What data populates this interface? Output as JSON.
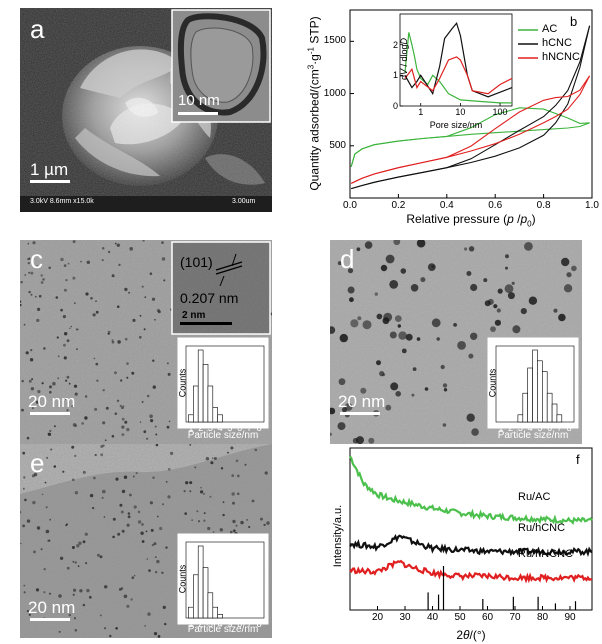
{
  "panel_a": {
    "label": "a",
    "scale_bar": "1 µm",
    "inset_scale_bar": "10 nm",
    "meta_left": "3.0kV 8.6mm x15.0k",
    "meta_right": "3.00um"
  },
  "panel_b": {
    "label": "b",
    "ylabel_main": "Quantity adsorbed/(cm",
    "ylabel_sup1": "3",
    "ylabel_mid": "·g",
    "ylabel_sup2": "-1",
    "ylabel_end": " STP)",
    "xlabel_main": "Relative pressure (",
    "xlabel_p": "p",
    "xlabel_slash": " /",
    "xlabel_p0": "p",
    "xlabel_0": "0",
    "xlabel_end": ")",
    "x_ticks": [
      "0.0",
      "0.2",
      "0.4",
      "0.6",
      "0.8",
      "1.0"
    ],
    "y_ticks": [
      "500",
      "1000",
      "1500"
    ],
    "legend": [
      {
        "name": "AC",
        "color": "#3cb43c"
      },
      {
        "name": "hCNC",
        "color": "#111111"
      },
      {
        "name": "hNCNC",
        "color": "#e02020"
      }
    ],
    "inset_ylabel_d": "d",
    "inset_ylabel_v": "V",
    "inset_ylabel_mid": " / dlog",
    "inset_ylabel_D": "D",
    "inset_xlabel": "Pore size/nm",
    "inset_x_ticks": [
      "1",
      "10",
      "100"
    ],
    "inset_y_ticks": [
      "0",
      "1",
      "2"
    ]
  },
  "panel_c": {
    "label": "c",
    "scale_bar": "20 nm",
    "lattice_plane": "(101)",
    "lattice_spacing": "0.207 nm",
    "inset_scale_bar": "2 nm",
    "hist_ylabel": "Counts",
    "hist_xlabel": "Particle size/nm",
    "hist_ticks": [
      "1",
      "2",
      "3",
      "4",
      "5",
      "6",
      "7",
      "8"
    ]
  },
  "panel_d": {
    "label": "d",
    "scale_bar": "20 nm",
    "hist_ylabel": "Counts",
    "hist_xlabel": "Particle size/nm",
    "hist_ticks": [
      "1",
      "2",
      "3",
      "4",
      "5",
      "6",
      "7",
      "8"
    ]
  },
  "panel_e": {
    "label": "e",
    "scale_bar": "20 nm",
    "hist_ylabel": "Counts",
    "hist_xlabel": "Particle size/nm",
    "hist_ticks": [
      "1",
      "2",
      "3",
      "4",
      "5",
      "6",
      "7",
      "8"
    ]
  },
  "panel_f": {
    "label": "f",
    "ylabel": "Intensity/a.u.",
    "xlabel_2": "2",
    "xlabel_theta": "θ",
    "xlabel_end": "/(°)",
    "x_ticks": [
      "20",
      "30",
      "40",
      "50",
      "60",
      "70",
      "80",
      "90"
    ],
    "series": [
      {
        "name": "Ru/AC",
        "color": "#4cc04c"
      },
      {
        "name": "Ru/hCNC",
        "color": "#111111"
      },
      {
        "name": "Ru/hNCNC",
        "color": "#e02020"
      }
    ]
  },
  "chart_data": [
    {
      "type": "line",
      "panel": "b",
      "xlabel": "Relative pressure (p/p0)",
      "ylabel": "Quantity adsorbed/(cm3·g-1 STP)",
      "xlim": [
        0,
        1.0
      ],
      "ylim": [
        0,
        1800
      ],
      "series": [
        {
          "name": "AC",
          "color": "#3cb43c",
          "x": [
            0.005,
            0.02,
            0.05,
            0.1,
            0.2,
            0.3,
            0.4,
            0.5,
            0.6,
            0.7,
            0.8,
            0.9,
            0.95,
            0.99
          ],
          "y": [
            300,
            420,
            470,
            510,
            545,
            570,
            590,
            610,
            625,
            640,
            655,
            670,
            685,
            720
          ]
        },
        {
          "name": "hCNC",
          "color": "#111111",
          "x": [
            0.005,
            0.05,
            0.1,
            0.2,
            0.3,
            0.4,
            0.5,
            0.6,
            0.7,
            0.8,
            0.85,
            0.9,
            0.95,
            0.99
          ],
          "y": [
            90,
            120,
            150,
            200,
            245,
            290,
            340,
            400,
            480,
            600,
            720,
            900,
            1250,
            1650
          ]
        },
        {
          "name": "hNCNC",
          "color": "#e02020",
          "x": [
            0.005,
            0.05,
            0.1,
            0.2,
            0.3,
            0.4,
            0.5,
            0.6,
            0.7,
            0.8,
            0.85,
            0.9,
            0.95,
            0.99
          ],
          "y": [
            140,
            190,
            230,
            290,
            340,
            390,
            450,
            520,
            610,
            720,
            780,
            850,
            990,
            1170
          ]
        }
      ],
      "inset": {
        "xlabel": "Pore size/nm",
        "xscale": "log",
        "xlim": [
          0.3,
          200
        ],
        "ylim": [
          0,
          3
        ],
        "series": [
          {
            "name": "AC",
            "x": [
              0.4,
              0.5,
              0.6,
              0.7,
              0.8,
              1.0,
              1.5,
              2,
              3,
              5,
              10,
              30,
              100,
              200
            ],
            "y": [
              1.1,
              2.4,
              2.0,
              1.6,
              1.2,
              0.9,
              0.7,
              1.0,
              0.8,
              0.4,
              0.2,
              0.15,
              0.1,
              0.1
            ]
          },
          {
            "name": "hCNC",
            "x": [
              0.4,
              0.6,
              0.8,
              1.0,
              2,
              3,
              4,
              6,
              8,
              10,
              15,
              20,
              50,
              200
            ],
            "y": [
              1.0,
              0.6,
              0.8,
              1.0,
              0.4,
              1.3,
              2.2,
              2.5,
              2.7,
              2.3,
              1.0,
              0.5,
              0.3,
              0.6
            ]
          },
          {
            "name": "hNCNC",
            "x": [
              0.4,
              0.6,
              0.8,
              1.0,
              2,
              3,
              5,
              8,
              10,
              15,
              20,
              50,
              100,
              200
            ],
            "y": [
              0.9,
              1.2,
              0.6,
              0.8,
              0.5,
              0.9,
              1.5,
              1.6,
              1.5,
              1.0,
              0.5,
              0.4,
              0.7,
              0.9
            ]
          }
        ]
      }
    },
    {
      "type": "bar",
      "panel": "c",
      "xlabel": "Particle size/nm",
      "ylabel": "Counts",
      "x": [
        1.0,
        1.5,
        2.0,
        2.5,
        3.0,
        3.5,
        4.0
      ],
      "values": [
        10,
        50,
        100,
        80,
        50,
        20,
        10
      ]
    },
    {
      "type": "bar",
      "panel": "d",
      "xlabel": "Particle size/nm",
      "ylabel": "Counts",
      "x": [
        3.0,
        3.5,
        4.0,
        4.5,
        5.0,
        5.5,
        6.0,
        6.5,
        7.0
      ],
      "values": [
        10,
        40,
        75,
        100,
        85,
        70,
        40,
        25,
        10
      ]
    },
    {
      "type": "bar",
      "panel": "e",
      "xlabel": "Particle size/nm",
      "ylabel": "Counts",
      "x": [
        1.0,
        1.5,
        2.0,
        2.5,
        3.0,
        3.5,
        4.0
      ],
      "values": [
        15,
        60,
        100,
        70,
        35,
        15,
        5
      ]
    },
    {
      "type": "line",
      "panel": "f",
      "xlabel": "2θ/(°)",
      "ylabel": "Intensity/a.u.",
      "xlim": [
        10,
        98
      ],
      "series": [
        {
          "name": "Ru/AC",
          "color": "#4cc04c",
          "x": [
            10,
            15,
            20,
            25,
            30,
            40,
            50,
            60,
            70,
            80,
            90,
            98
          ],
          "y": [
            1.0,
            0.82,
            0.75,
            0.72,
            0.7,
            0.66,
            0.63,
            0.61,
            0.6,
            0.59,
            0.58,
            0.58
          ]
        },
        {
          "name": "Ru/hCNC",
          "color": "#111111",
          "x": [
            10,
            15,
            20,
            25,
            28,
            32,
            40,
            50,
            60,
            70,
            80,
            90,
            98
          ],
          "y": [
            0.43,
            0.42,
            0.41,
            0.45,
            0.48,
            0.45,
            0.4,
            0.39,
            0.38,
            0.38,
            0.38,
            0.38,
            0.38
          ]
        },
        {
          "name": "Ru/hNCNC",
          "color": "#e02020",
          "x": [
            10,
            15,
            20,
            25,
            28,
            32,
            40,
            50,
            60,
            70,
            80,
            90,
            98
          ],
          "y": [
            0.26,
            0.25,
            0.25,
            0.29,
            0.31,
            0.28,
            0.24,
            0.22,
            0.22,
            0.21,
            0.21,
            0.21,
            0.21
          ]
        }
      ],
      "reference_sticks": {
        "x": [
          38.4,
          42.2,
          44.0,
          58.3,
          69.4,
          78.4,
          84.7,
          92.0
        ],
        "relative_intensity": [
          0.4,
          0.35,
          1.0,
          0.25,
          0.3,
          0.3,
          0.15,
          0.2
        ]
      }
    }
  ]
}
